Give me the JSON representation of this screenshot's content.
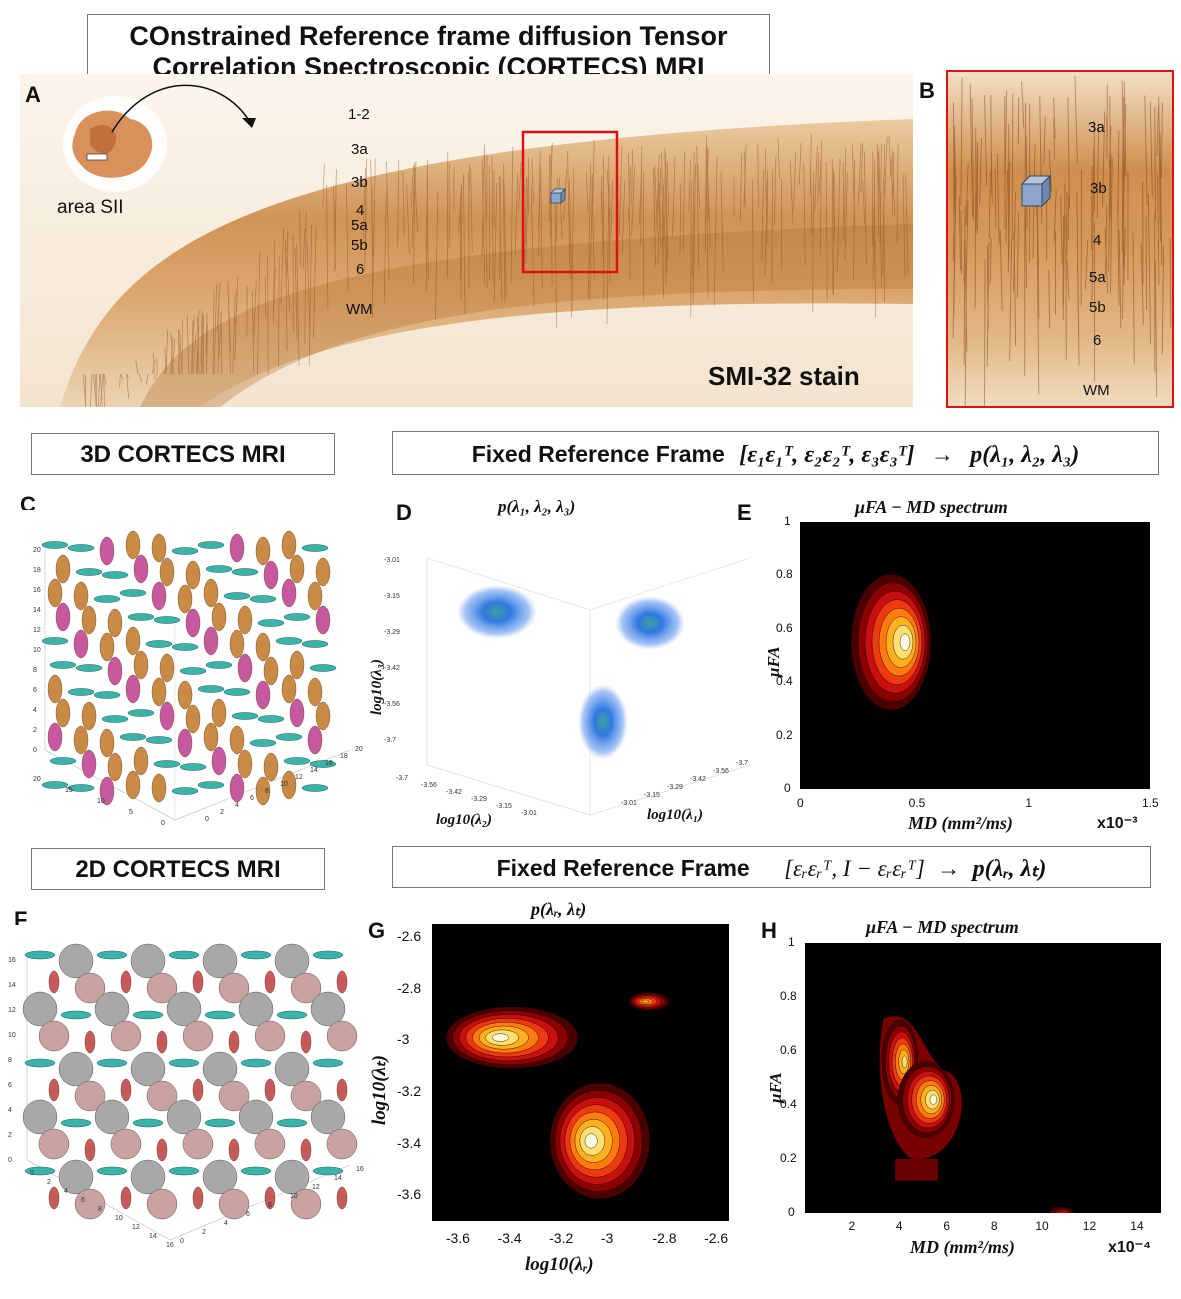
{
  "figure_title": {
    "line1": "COnstrained Reference frame diffusion Tensor",
    "line2": "Correlation Spectroscopic (CORTECS) MRI"
  },
  "panels": {
    "A": "A",
    "B": "B",
    "C": "C",
    "D": "D",
    "E": "E",
    "F": "F",
    "G": "G",
    "H": "H"
  },
  "panel_a": {
    "inset_label": "area SII",
    "stain_label": "SMI-32 stain",
    "layers": [
      "1-2",
      "3a",
      "3b",
      "4",
      "5a",
      "5b",
      "6",
      "WM"
    ]
  },
  "panel_b": {
    "layers": [
      "3a",
      "3b",
      "4",
      "5a",
      "5b",
      "6",
      "WM"
    ]
  },
  "section_3d": {
    "label": "3D CORTECS MRI",
    "frame_label": "Fixed Reference Frame",
    "frame_formula": "[ε₁ε₁ᵀ, ε₂ε₂ᵀ, ε₃ε₃ᵀ]",
    "arrow": "→",
    "frame_result": "p(λ₁, λ₂, λ₃)"
  },
  "section_2d": {
    "label": "2D CORTECS MRI",
    "frame_label": "Fixed Reference Frame",
    "frame_formula": "[εᵣεᵣᵀ, I − εᵣεᵣᵀ]",
    "arrow": "→",
    "frame_result": "p(λᵣ, λₜ)"
  },
  "panel_c": {
    "z_ticks": [
      "20",
      "18",
      "16",
      "14",
      "12",
      "10",
      "8",
      "6",
      "4",
      "2",
      "0"
    ],
    "y_ticks": [
      "20",
      "15",
      "10",
      "5",
      "0"
    ],
    "x_ticks": [
      "0",
      "2",
      "4",
      "6",
      "8",
      "10",
      "12",
      "14",
      "16",
      "18",
      "20"
    ]
  },
  "panel_d": {
    "title": "p(λ₁, λ₂, λ₃)",
    "ylabel": "log10(λ₃)",
    "xlabel_left": "log10(λ₂)",
    "xlabel_right": "log10(λ₁)",
    "y_ticks": [
      "-3.01",
      "-3.15",
      "-3.29",
      "-3.42",
      "-3.56",
      "-3.7"
    ],
    "left_ticks": [
      "-3.7",
      "-3.56",
      "-3.42",
      "-3.29",
      "-3.15",
      "-3.01"
    ],
    "right_ticks": [
      "-3.01",
      "-3.15",
      "-3.29",
      "-3.42",
      "-3.56",
      "-3.7"
    ]
  },
  "panel_f": {
    "z_ticks": [
      "16",
      "14",
      "12",
      "10",
      "8",
      "6",
      "4",
      "2",
      "0"
    ],
    "y_ticks": [
      "0",
      "2",
      "4",
      "6",
      "8",
      "10",
      "12",
      "14",
      "16"
    ],
    "x_ticks": [
      "0",
      "2",
      "4",
      "6",
      "8",
      "10",
      "12",
      "14",
      "16"
    ]
  },
  "chart_data": [
    {
      "id": "E",
      "type": "heatmap",
      "title": "μFA − MD spectrum",
      "xlabel": "MD (mm²/ms)",
      "ylabel": "μFA",
      "x_multiplier": "x10⁻³",
      "xlim": [
        0,
        1.5
      ],
      "ylim": [
        0,
        1
      ],
      "x_ticks": [
        "0",
        "0.5",
        "1",
        "1.5"
      ],
      "y_ticks": [
        "0",
        "0.2",
        "0.4",
        "0.6",
        "0.8",
        "1"
      ],
      "peaks": [
        {
          "x": 0.39,
          "y": 0.55
        }
      ]
    },
    {
      "id": "G",
      "type": "heatmap",
      "title": "p(λᵣ, λₜ)",
      "xlabel": "log10(λᵣ)",
      "ylabel": "log10(λₜ)",
      "xlim": [
        -3.7,
        -2.55
      ],
      "ylim": [
        -3.7,
        -2.55
      ],
      "x_ticks": [
        "-3.6",
        "-3.4",
        "-3.2",
        "-3",
        "-2.8",
        "-2.6"
      ],
      "y_ticks": [
        "-2.6",
        "-2.8",
        "-3",
        "-3.2",
        "-3.4",
        "-3.6"
      ],
      "peaks": [
        {
          "x": -3.39,
          "y": -2.99
        },
        {
          "x": -3.05,
          "y": -3.39
        },
        {
          "x": -2.86,
          "y": -2.85
        }
      ]
    },
    {
      "id": "H",
      "type": "heatmap",
      "title": "μFA − MD spectrum",
      "xlabel": "MD (mm²/ms)",
      "ylabel": "μFA",
      "x_multiplier": "x10⁻⁴",
      "xlim": [
        0,
        15
      ],
      "ylim": [
        0,
        1
      ],
      "x_ticks": [
        "2",
        "4",
        "6",
        "8",
        "10",
        "12",
        "14"
      ],
      "y_ticks": [
        "0",
        "0.2",
        "0.4",
        "0.6",
        "0.8",
        "1"
      ],
      "peaks": [
        {
          "x": 4.0,
          "y": 0.56
        },
        {
          "x": 5.1,
          "y": 0.42
        },
        {
          "x": 10.8,
          "y": 0.0
        }
      ]
    }
  ]
}
